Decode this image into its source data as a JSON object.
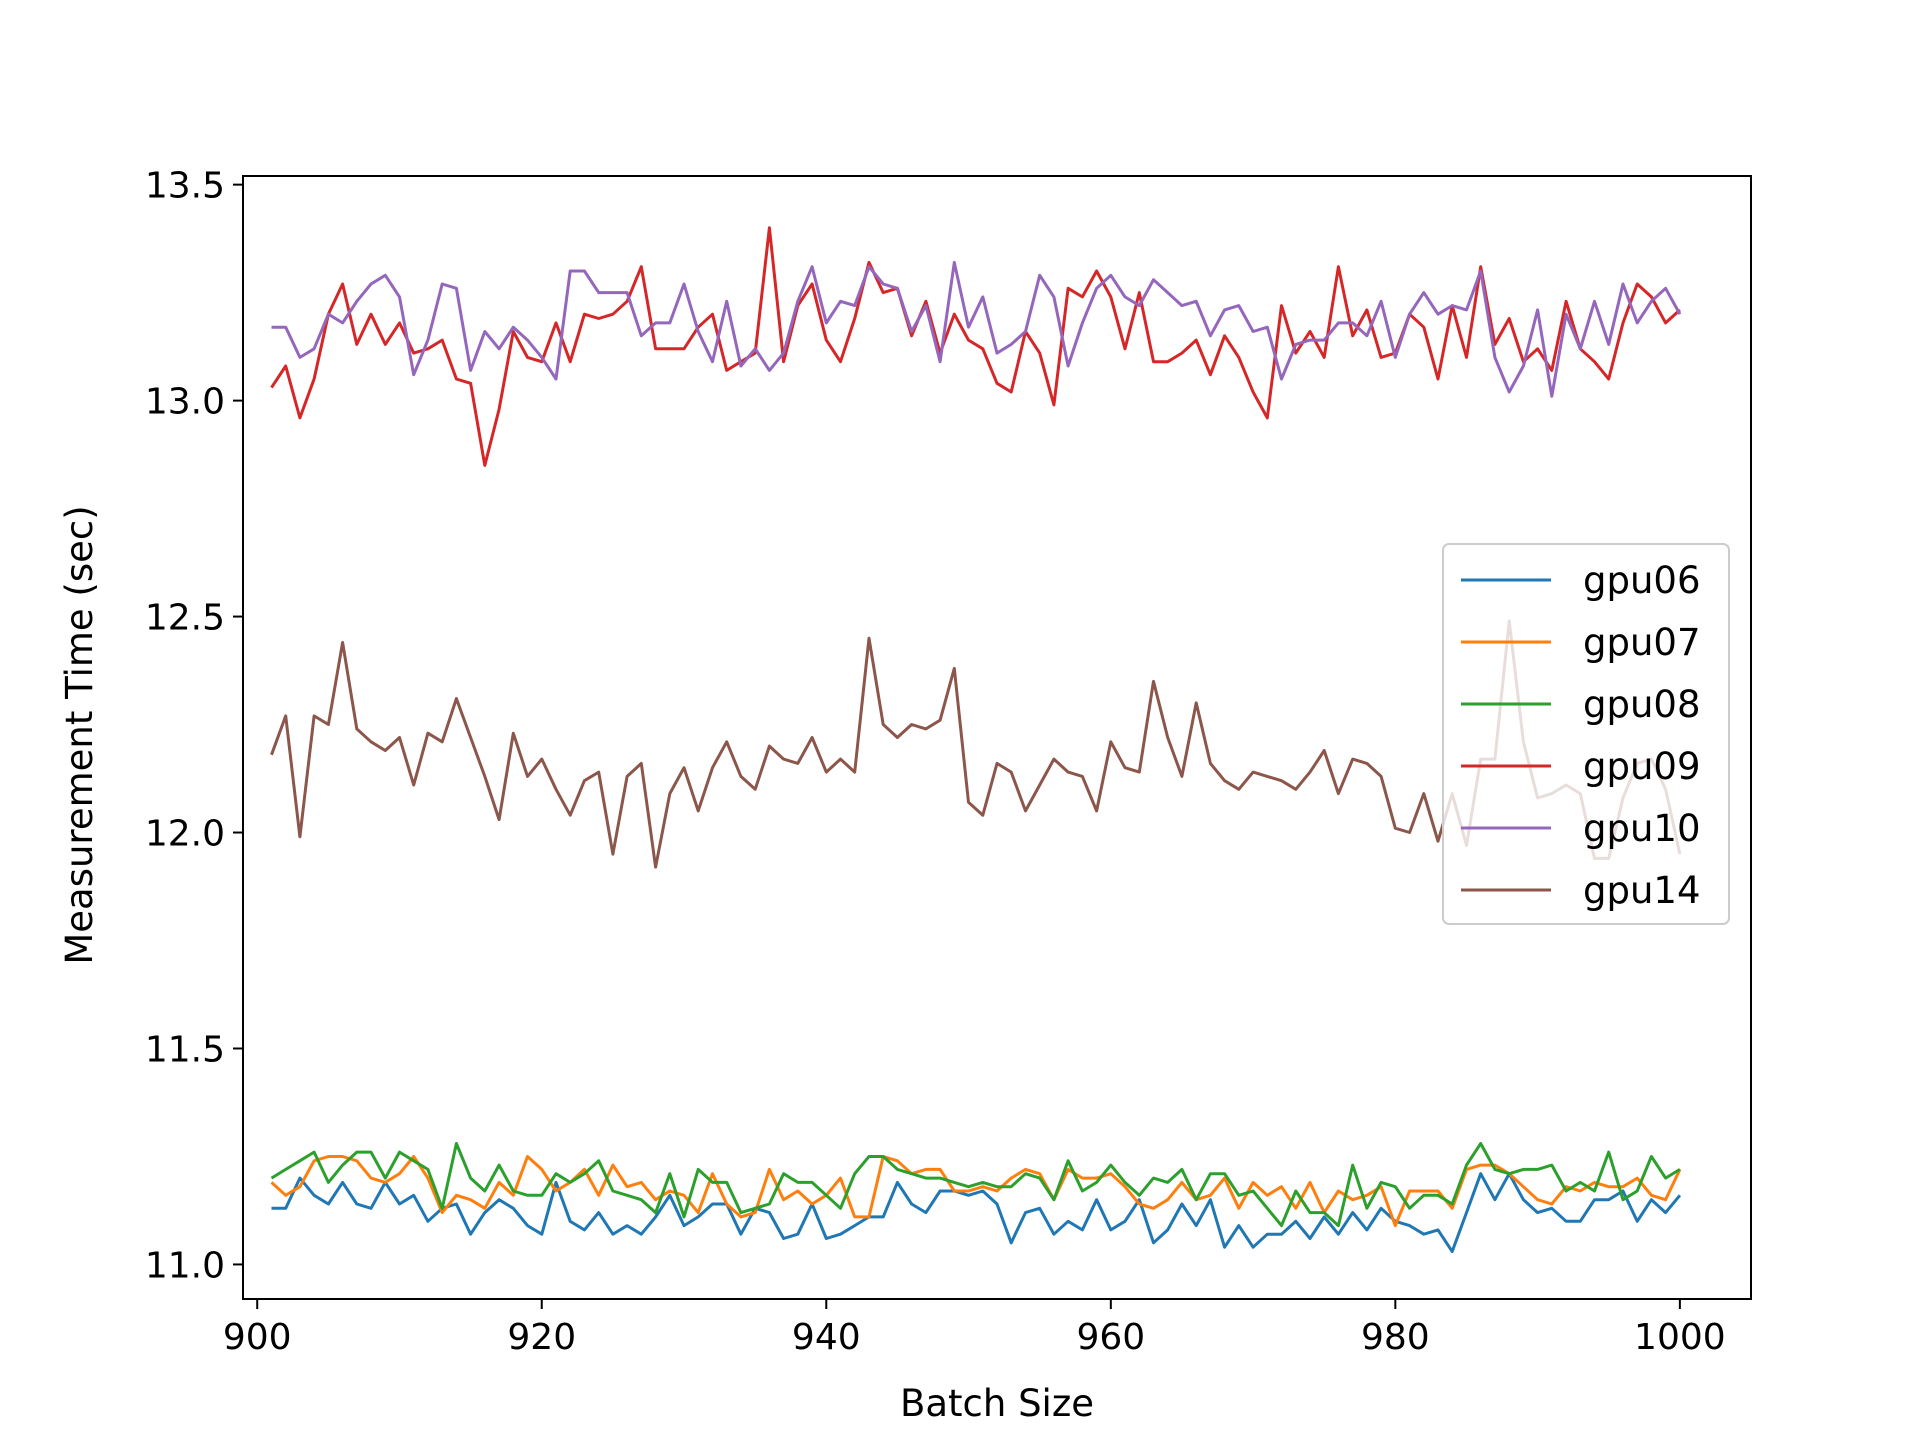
{
  "chart_data": {
    "type": "line",
    "title": "",
    "xlabel": "Batch Size",
    "ylabel": "Measurement Time (sec)",
    "xlim": [
      899,
      1005
    ],
    "ylim": [
      10.92,
      13.52
    ],
    "xticks": [
      900,
      920,
      940,
      960,
      980,
      1000
    ],
    "xtick_labels": [
      "900",
      "920",
      "940",
      "960",
      "980",
      "1000"
    ],
    "yticks": [
      11.0,
      11.5,
      12.0,
      12.5,
      13.0,
      13.5
    ],
    "ytick_labels": [
      "11.0",
      "11.5",
      "12.0",
      "12.5",
      "13.0",
      "13.5"
    ],
    "legend_position": "center-right",
    "grid": false,
    "x_start": 901,
    "x_step": 1,
    "series": [
      {
        "name": "gpu06",
        "color": "#1f77b4",
        "values": [
          11.13,
          11.13,
          11.2,
          11.16,
          11.14,
          11.19,
          11.14,
          11.13,
          11.19,
          11.14,
          11.16,
          11.1,
          11.13,
          11.14,
          11.07,
          11.12,
          11.15,
          11.13,
          11.09,
          11.07,
          11.19,
          11.1,
          11.08,
          11.12,
          11.07,
          11.09,
          11.07,
          11.11,
          11.16,
          11.09,
          11.11,
          11.14,
          11.14,
          11.07,
          11.13,
          11.12,
          11.06,
          11.07,
          11.14,
          11.06,
          11.07,
          11.09,
          11.11,
          11.11,
          11.19,
          11.14,
          11.12,
          11.17,
          11.17,
          11.16,
          11.17,
          11.14,
          11.05,
          11.12,
          11.13,
          11.07,
          11.1,
          11.08,
          11.15,
          11.08,
          11.1,
          11.15,
          11.05,
          11.08,
          11.14,
          11.09,
          11.15,
          11.04,
          11.09,
          11.04,
          11.07,
          11.07,
          11.1,
          11.06,
          11.11,
          11.07,
          11.12,
          11.08,
          11.13,
          11.1,
          11.09,
          11.07,
          11.08,
          11.03,
          11.12,
          11.21,
          11.15,
          11.21,
          11.15,
          11.12,
          11.13,
          11.1,
          11.1,
          11.15,
          11.15,
          11.17,
          11.1,
          11.15,
          11.12,
          11.16
        ]
      },
      {
        "name": "gpu07",
        "color": "#ff7f0e",
        "values": [
          11.19,
          11.16,
          11.18,
          11.24,
          11.25,
          11.25,
          11.24,
          11.2,
          11.19,
          11.21,
          11.25,
          11.2,
          11.12,
          11.16,
          11.15,
          11.13,
          11.19,
          11.16,
          11.25,
          11.22,
          11.17,
          11.19,
          11.22,
          11.16,
          11.23,
          11.18,
          11.19,
          11.15,
          11.17,
          11.16,
          11.12,
          11.21,
          11.14,
          11.11,
          11.12,
          11.22,
          11.15,
          11.17,
          11.14,
          11.16,
          11.2,
          11.11,
          11.11,
          11.25,
          11.24,
          11.21,
          11.22,
          11.22,
          11.17,
          11.17,
          11.18,
          11.17,
          11.2,
          11.22,
          11.21,
          11.15,
          11.22,
          11.2,
          11.2,
          11.21,
          11.18,
          11.14,
          11.13,
          11.15,
          11.19,
          11.15,
          11.16,
          11.2,
          11.13,
          11.19,
          11.16,
          11.18,
          11.13,
          11.19,
          11.12,
          11.17,
          11.15,
          11.16,
          11.18,
          11.09,
          11.17,
          11.17,
          11.17,
          11.13,
          11.22,
          11.23,
          11.23,
          11.21,
          11.18,
          11.15,
          11.14,
          11.18,
          11.17,
          11.19,
          11.18,
          11.18,
          11.2,
          11.16,
          11.15,
          11.22
        ]
      },
      {
        "name": "gpu08",
        "color": "#2ca02c",
        "values": [
          11.2,
          11.22,
          11.24,
          11.26,
          11.19,
          11.23,
          11.26,
          11.26,
          11.2,
          11.26,
          11.24,
          11.22,
          11.13,
          11.28,
          11.2,
          11.17,
          11.23,
          11.17,
          11.16,
          11.16,
          11.21,
          11.19,
          11.21,
          11.24,
          11.17,
          11.16,
          11.15,
          11.12,
          11.21,
          11.11,
          11.22,
          11.19,
          11.19,
          11.12,
          11.13,
          11.14,
          11.21,
          11.19,
          11.19,
          11.16,
          11.13,
          11.21,
          11.25,
          11.25,
          11.22,
          11.21,
          11.2,
          11.2,
          11.19,
          11.18,
          11.19,
          11.18,
          11.18,
          11.21,
          11.2,
          11.15,
          11.24,
          11.17,
          11.19,
          11.23,
          11.19,
          11.16,
          11.2,
          11.19,
          11.22,
          11.15,
          11.21,
          11.21,
          11.16,
          11.17,
          11.13,
          11.09,
          11.17,
          11.12,
          11.12,
          11.09,
          11.23,
          11.13,
          11.19,
          11.18,
          11.13,
          11.16,
          11.16,
          11.14,
          11.23,
          11.28,
          11.22,
          11.21,
          11.22,
          11.22,
          11.23,
          11.17,
          11.19,
          11.17,
          11.26,
          11.15,
          11.17,
          11.25,
          11.2,
          11.22
        ]
      },
      {
        "name": "gpu09",
        "color": "#d62728",
        "values": [
          13.03,
          13.08,
          12.96,
          13.05,
          13.2,
          13.27,
          13.13,
          13.2,
          13.13,
          13.18,
          13.11,
          13.12,
          13.14,
          13.05,
          13.04,
          12.85,
          12.98,
          13.16,
          13.1,
          13.09,
          13.18,
          13.09,
          13.2,
          13.19,
          13.2,
          13.23,
          13.31,
          13.12,
          13.12,
          13.12,
          13.17,
          13.2,
          13.07,
          13.09,
          13.11,
          13.4,
          13.09,
          13.22,
          13.27,
          13.14,
          13.09,
          13.19,
          13.32,
          13.25,
          13.26,
          13.15,
          13.23,
          13.11,
          13.2,
          13.14,
          13.12,
          13.04,
          13.02,
          13.16,
          13.11,
          12.99,
          13.26,
          13.24,
          13.3,
          13.24,
          13.12,
          13.25,
          13.09,
          13.09,
          13.11,
          13.14,
          13.06,
          13.15,
          13.1,
          13.02,
          12.96,
          13.22,
          13.11,
          13.16,
          13.1,
          13.31,
          13.15,
          13.21,
          13.1,
          13.11,
          13.2,
          13.17,
          13.05,
          13.22,
          13.1,
          13.31,
          13.13,
          13.19,
          13.09,
          13.12,
          13.07,
          13.23,
          13.12,
          13.09,
          13.05,
          13.18,
          13.27,
          13.24,
          13.18,
          13.21
        ]
      },
      {
        "name": "gpu10",
        "color": "#9467bd",
        "values": [
          13.17,
          13.17,
          13.1,
          13.12,
          13.2,
          13.18,
          13.23,
          13.27,
          13.29,
          13.24,
          13.06,
          13.14,
          13.27,
          13.26,
          13.07,
          13.16,
          13.12,
          13.17,
          13.14,
          13.1,
          13.05,
          13.3,
          13.3,
          13.25,
          13.25,
          13.25,
          13.15,
          13.18,
          13.18,
          13.27,
          13.16,
          13.09,
          13.23,
          13.08,
          13.12,
          13.07,
          13.11,
          13.23,
          13.31,
          13.18,
          13.23,
          13.22,
          13.31,
          13.27,
          13.26,
          13.16,
          13.22,
          13.09,
          13.32,
          13.17,
          13.24,
          13.11,
          13.13,
          13.16,
          13.29,
          13.24,
          13.08,
          13.18,
          13.26,
          13.29,
          13.24,
          13.22,
          13.28,
          13.25,
          13.22,
          13.23,
          13.15,
          13.21,
          13.22,
          13.16,
          13.17,
          13.05,
          13.13,
          13.14,
          13.14,
          13.18,
          13.18,
          13.15,
          13.23,
          13.1,
          13.2,
          13.25,
          13.2,
          13.22,
          13.21,
          13.3,
          13.1,
          13.02,
          13.08,
          13.21,
          13.01,
          13.2,
          13.12,
          13.23,
          13.13,
          13.27,
          13.18,
          13.23,
          13.26,
          13.2
        ]
      },
      {
        "name": "gpu14",
        "color": "#8c564b",
        "values": [
          12.18,
          12.27,
          11.99,
          12.27,
          12.25,
          12.44,
          12.24,
          12.21,
          12.19,
          12.22,
          12.11,
          12.23,
          12.21,
          12.31,
          12.22,
          12.13,
          12.03,
          12.23,
          12.13,
          12.17,
          12.1,
          12.04,
          12.12,
          12.14,
          11.95,
          12.13,
          12.16,
          11.92,
          12.09,
          12.15,
          12.05,
          12.15,
          12.21,
          12.13,
          12.1,
          12.2,
          12.17,
          12.16,
          12.22,
          12.14,
          12.17,
          12.14,
          12.45,
          12.25,
          12.22,
          12.25,
          12.24,
          12.26,
          12.38,
          12.07,
          12.04,
          12.16,
          12.14,
          12.05,
          12.11,
          12.17,
          12.14,
          12.13,
          12.05,
          12.21,
          12.15,
          12.14,
          12.35,
          12.22,
          12.13,
          12.3,
          12.16,
          12.12,
          12.1,
          12.14,
          12.13,
          12.12,
          12.1,
          12.14,
          12.19,
          12.09,
          12.17,
          12.16,
          12.13,
          12.01,
          12.0,
          12.09,
          11.98,
          12.09,
          11.97,
          12.17,
          12.17,
          12.49,
          12.21,
          12.08,
          12.09,
          12.11,
          12.09,
          11.94,
          11.94,
          12.08,
          12.16,
          12.17,
          12.1,
          11.95
        ]
      }
    ]
  }
}
